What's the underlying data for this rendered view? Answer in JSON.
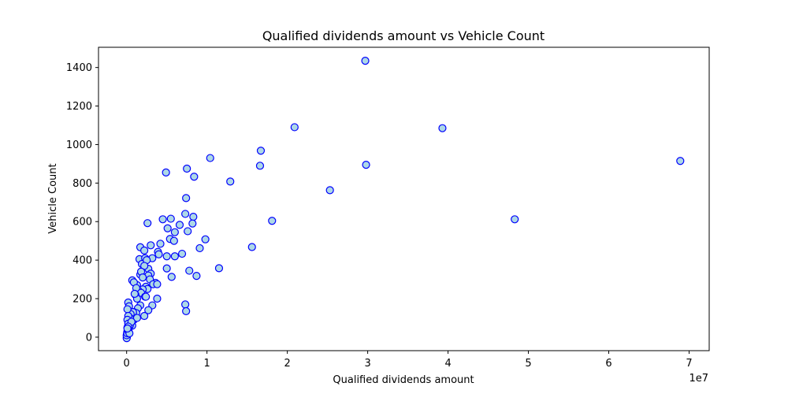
{
  "chart_data": {
    "type": "scatter",
    "title": "Qualified dividends amount vs Vehicle Count",
    "xlabel": "Qualified dividends amount",
    "ylabel": "Vehicle Count",
    "x_offset_label": "1e7",
    "xlim": [
      -3500000,
      72500000
    ],
    "ylim": [
      -70,
      1505
    ],
    "x_ticks": [
      0,
      10000000,
      20000000,
      30000000,
      40000000,
      50000000,
      60000000,
      70000000
    ],
    "x_tick_labels": [
      "0",
      "1",
      "2",
      "3",
      "4",
      "5",
      "6",
      "7"
    ],
    "y_ticks": [
      0,
      200,
      400,
      600,
      800,
      1000,
      1200,
      1400
    ],
    "y_tick_labels": [
      "0",
      "200",
      "400",
      "600",
      "800",
      "1000",
      "1200",
      "1400"
    ],
    "grid": false,
    "marker_fill": "#add8e6",
    "marker_edge": "#0000ff",
    "x": [
      29700000,
      20900000,
      39300000,
      16700000,
      10400000,
      16600000,
      29800000,
      68900000,
      7500000,
      4900000,
      8400000,
      12900000,
      25300000,
      7400000,
      48300000,
      18100000,
      7300000,
      8300000,
      5500000,
      4500000,
      7600000,
      5100000,
      2600000,
      3000000,
      6600000,
      5400000,
      5900000,
      8200000,
      9800000,
      6000000,
      4200000,
      15600000,
      9100000,
      11500000,
      3900000,
      5000000,
      6000000,
      4000000,
      6900000,
      5000000,
      7800000,
      5600000,
      8700000,
      3600000,
      1700000,
      3200000,
      2200000,
      1600000,
      2300000,
      1900000,
      2500000,
      2700000,
      3000000,
      1700000,
      2700000,
      2200000,
      1800000,
      2000000,
      2900000,
      3300000,
      1300000,
      2400000,
      3800000,
      2600000,
      2000000,
      1500000,
      700000,
      900000,
      1200000,
      1800000,
      2300000,
      1100000,
      3800000,
      1300000,
      2400000,
      7300000,
      1700000,
      3200000,
      7400000,
      1400000,
      900000,
      2700000,
      1200000,
      2200000,
      900000,
      1100000,
      600000,
      700000,
      800000,
      1000000,
      1300000,
      500000,
      200000,
      300000,
      100000,
      400000,
      200000,
      100000,
      200000,
      300000,
      100000,
      150000,
      200000,
      100000,
      80000,
      50000,
      120000,
      60000,
      30000,
      20000,
      10000,
      5000,
      80000,
      250000,
      150000,
      400000,
      600000,
      350000,
      200000,
      100000
    ],
    "y": [
      1435,
      1090,
      1085,
      968,
      930,
      890,
      895,
      915,
      875,
      855,
      833,
      808,
      763,
      722,
      612,
      604,
      640,
      625,
      615,
      612,
      550,
      565,
      592,
      477,
      583,
      510,
      500,
      590,
      508,
      420,
      485,
      468,
      462,
      358,
      443,
      420,
      545,
      430,
      433,
      357,
      345,
      313,
      318,
      282,
      467,
      410,
      450,
      405,
      410,
      380,
      400,
      355,
      330,
      325,
      320,
      370,
      340,
      310,
      300,
      275,
      270,
      262,
      275,
      250,
      248,
      240,
      295,
      285,
      255,
      230,
      210,
      220,
      200,
      200,
      210,
      170,
      165,
      165,
      135,
      150,
      130,
      140,
      125,
      110,
      90,
      100,
      75,
      60,
      130,
      225,
      100,
      120,
      180,
      160,
      145,
      100,
      110,
      90,
      70,
      55,
      50,
      40,
      35,
      30,
      25,
      20,
      15,
      10,
      5,
      0,
      -5,
      10,
      20,
      30,
      40,
      60,
      80,
      20,
      55,
      45
    ]
  }
}
